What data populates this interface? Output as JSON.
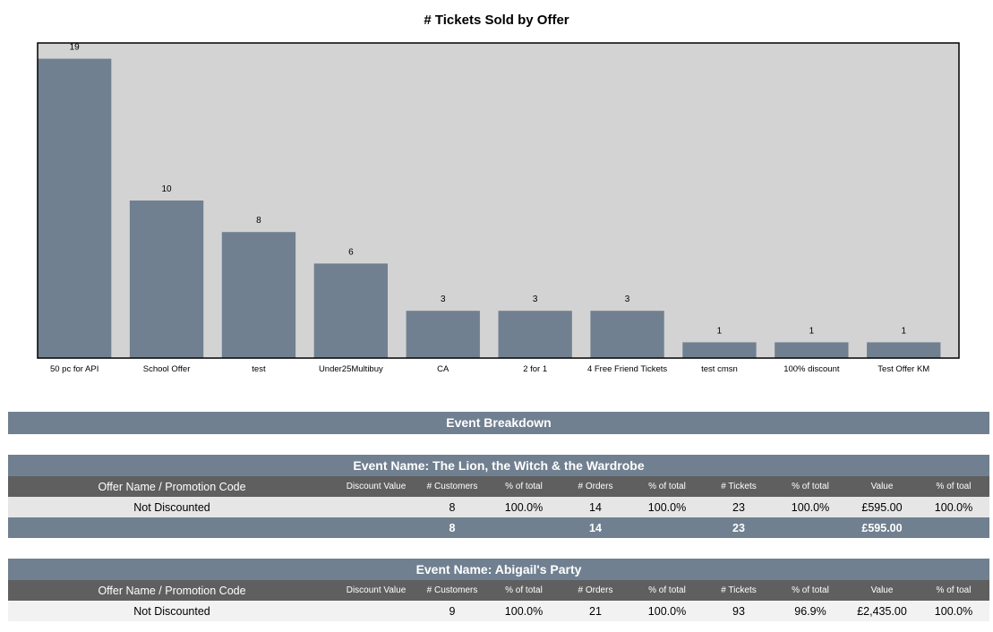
{
  "chart_data": {
    "type": "bar",
    "title": "# Tickets Sold by Offer",
    "categories": [
      "50 pc for API",
      "School Offer",
      "test",
      "Under25Multibuy",
      "CA",
      "2 for 1",
      "4 Free Friend Tickets",
      "test cmsn",
      "100% discount",
      "Test Offer KM"
    ],
    "values": [
      19,
      10,
      8,
      6,
      3,
      3,
      3,
      1,
      1,
      1
    ],
    "ylim": [
      0,
      20
    ],
    "grid": false,
    "data_labels": true,
    "colors": {
      "bar": "#708090",
      "plot_bg": "#d3d3d3"
    }
  },
  "breakdown": {
    "title": "Event Breakdown",
    "columns": [
      "Offer Name / Promotion Code",
      "Discount Value",
      "# Customers",
      "% of total",
      "# Orders",
      "% of total",
      "# Tickets",
      "% of total",
      "Value",
      "% of toal"
    ],
    "events": [
      {
        "title": "Event Name:  The Lion, the Witch & the Wardrobe",
        "rows": [
          [
            "Not Discounted",
            "",
            "8",
            "100.0%",
            "14",
            "100.0%",
            "23",
            "100.0%",
            "£595.00",
            "100.0%"
          ]
        ],
        "total": [
          "",
          "",
          "8",
          "",
          "14",
          "",
          "23",
          "",
          "£595.00",
          ""
        ]
      },
      {
        "title": "Event Name: Abigail's Party",
        "rows": [
          [
            "Not Discounted",
            "",
            "9",
            "100.0%",
            "21",
            "100.0%",
            "93",
            "96.9%",
            "£2,435.00",
            "100.0%"
          ]
        ]
      }
    ]
  },
  "colors": {
    "band": "#708090",
    "header": "#5f5f5f",
    "row_light": "#e6e6e6",
    "row_lighter": "#f2f2f2"
  }
}
